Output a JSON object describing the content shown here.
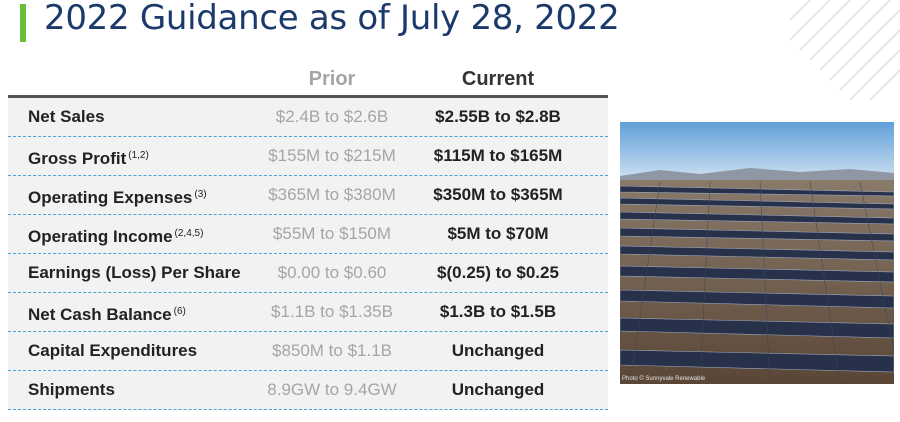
{
  "title": "2022 Guidance as of July 28, 2022",
  "colors": {
    "title": "#1b3a6b",
    "accent_bar": "#6abf3a",
    "divider": "#4aa3d8"
  },
  "table": {
    "headers": {
      "prior": "Prior",
      "current": "Current"
    },
    "rows": [
      {
        "label": "Net Sales",
        "note": "",
        "prior": "$2.4B to $2.6B",
        "current": "$2.55B to $2.8B"
      },
      {
        "label": "Gross Profit",
        "note": "(1,2)",
        "prior": "$155M to $215M",
        "current": "$115M to $165M"
      },
      {
        "label": "Operating Expenses",
        "note": "(3)",
        "prior": "$365M to $380M",
        "current": "$350M to $365M"
      },
      {
        "label": "Operating Income",
        "note": "(2,4,5)",
        "prior": "$55M to $150M",
        "current": "$5M to $70M"
      },
      {
        "label": "Earnings (Loss) Per Share",
        "note": "",
        "prior": "$0.00 to $0.60",
        "current": "$(0.25) to $0.25"
      },
      {
        "label": "Net Cash Balance",
        "note": "(6)",
        "prior": "$1.1B to $1.35B",
        "current": "$1.3B to $1.5B"
      },
      {
        "label": "Capital Expenditures",
        "note": "",
        "prior": "$850M to $1.1B",
        "current": "Unchanged"
      },
      {
        "label": "Shipments",
        "note": "",
        "prior": "8.9GW to 9.4GW",
        "current": "Unchanged"
      }
    ]
  },
  "photo": {
    "credit": "Photo © Sunnyvale Renewable"
  }
}
